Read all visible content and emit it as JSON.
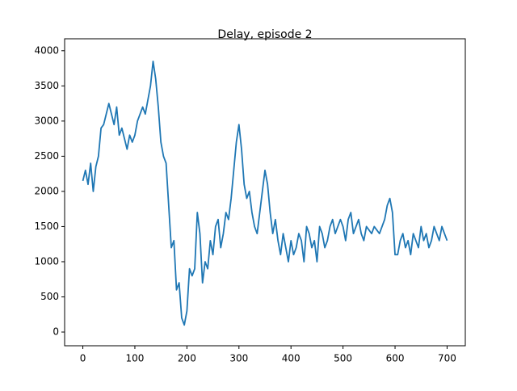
{
  "chart_data": {
    "type": "line",
    "title": "Delay, episode 2",
    "x": [
      0,
      5,
      10,
      15,
      20,
      25,
      30,
      35,
      40,
      45,
      50,
      55,
      60,
      65,
      70,
      75,
      80,
      85,
      90,
      95,
      100,
      105,
      110,
      115,
      120,
      125,
      130,
      135,
      140,
      145,
      150,
      155,
      160,
      165,
      170,
      175,
      180,
      185,
      190,
      195,
      200,
      205,
      210,
      215,
      220,
      225,
      230,
      235,
      240,
      245,
      250,
      255,
      260,
      265,
      270,
      275,
      280,
      285,
      290,
      295,
      300,
      305,
      310,
      315,
      320,
      325,
      330,
      335,
      340,
      345,
      350,
      355,
      360,
      365,
      370,
      375,
      380,
      385,
      390,
      395,
      400,
      405,
      410,
      415,
      420,
      425,
      430,
      435,
      440,
      445,
      450,
      455,
      460,
      465,
      470,
      475,
      480,
      485,
      490,
      495,
      500,
      505,
      510,
      515,
      520,
      525,
      530,
      535,
      540,
      545,
      550,
      555,
      560,
      565,
      570,
      575,
      580,
      585,
      590,
      595,
      600,
      605,
      610,
      615,
      620,
      625,
      630,
      635,
      640,
      645,
      650,
      655,
      660,
      665,
      670,
      675,
      680,
      685,
      690,
      695,
      700
    ],
    "series": [
      {
        "name": "delay",
        "color": "#1f77b4",
        "values": [
          2150,
          2300,
          2100,
          2400,
          2000,
          2350,
          2500,
          2900,
          2950,
          3100,
          3250,
          3100,
          2950,
          3200,
          2800,
          2900,
          2750,
          2600,
          2800,
          2700,
          2800,
          3000,
          3100,
          3200,
          3100,
          3300,
          3500,
          3850,
          3600,
          3200,
          2700,
          2500,
          2400,
          1800,
          1200,
          1300,
          600,
          700,
          200,
          100,
          300,
          900,
          800,
          900,
          1700,
          1400,
          700,
          1000,
          900,
          1300,
          1100,
          1500,
          1600,
          1200,
          1400,
          1700,
          1600,
          1900,
          2300,
          2700,
          2950,
          2600,
          2100,
          1900,
          2000,
          1700,
          1500,
          1400,
          1700,
          2000,
          2300,
          2100,
          1700,
          1400,
          1600,
          1300,
          1100,
          1400,
          1200,
          1000,
          1300,
          1100,
          1200,
          1400,
          1300,
          1000,
          1500,
          1400,
          1200,
          1300,
          1000,
          1500,
          1400,
          1200,
          1300,
          1500,
          1600,
          1400,
          1500,
          1600,
          1500,
          1300,
          1600,
          1700,
          1400,
          1500,
          1600,
          1400,
          1300,
          1500,
          1450,
          1400,
          1500,
          1450,
          1400,
          1500,
          1600,
          1800,
          1900,
          1700,
          1100,
          1100,
          1300,
          1400,
          1200,
          1300,
          1100,
          1400,
          1300,
          1200,
          1500,
          1300,
          1400,
          1200,
          1300,
          1500,
          1400,
          1300,
          1500,
          1400,
          1300
        ]
      }
    ],
    "xlim": [
      -35,
      735
    ],
    "ylim": [
      -195,
      4170
    ],
    "xticks": [
      0,
      100,
      200,
      300,
      400,
      500,
      600,
      700
    ],
    "yticks": [
      0,
      500,
      1000,
      1500,
      2000,
      2500,
      3000,
      3500,
      4000
    ]
  }
}
